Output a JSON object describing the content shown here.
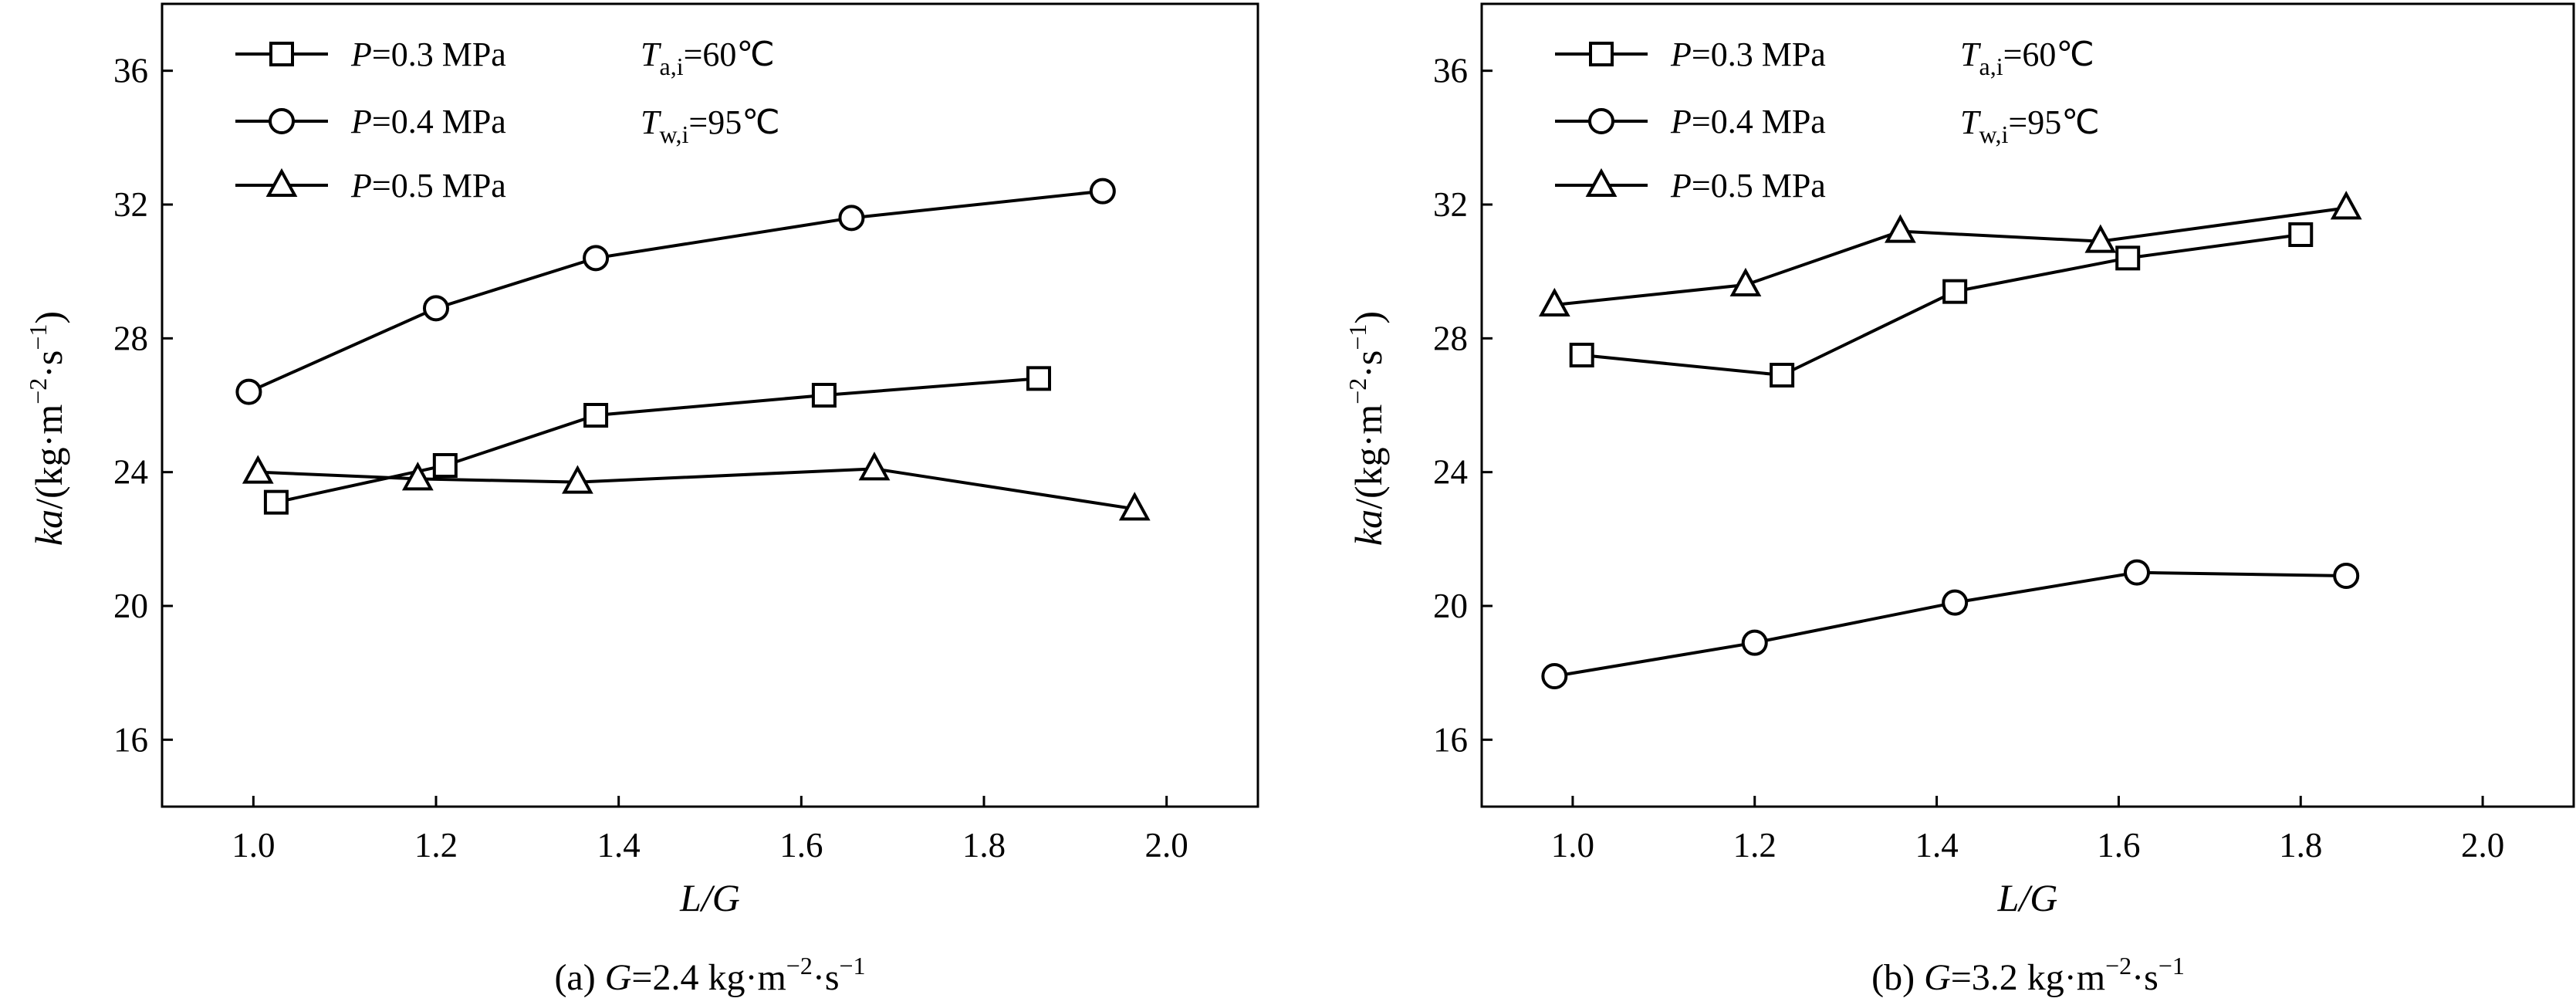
{
  "chart_data": [
    {
      "type": "line",
      "caption": {
        "prefix": "(a) ",
        "var": "G",
        "text": "=2.4 kg·m",
        "exp": "−2",
        "suffix": "·s",
        "exp2": "−1"
      },
      "xlabel": {
        "main": "L/G"
      },
      "ylabel": {
        "var": "ka",
        "text": "/(kg·m",
        "exp": "−2",
        "mid": "·s",
        "exp2": "−1",
        "close": ")"
      },
      "xlim": [
        0.9,
        2.1
      ],
      "ylim": [
        14,
        38
      ],
      "xticks": [
        1.0,
        1.2,
        1.4,
        1.6,
        1.8,
        2.0
      ],
      "xticklabels": [
        "1.0",
        "1.2",
        "1.4",
        "1.6",
        "1.8",
        "2.0"
      ],
      "yticks": [
        16,
        20,
        24,
        28,
        32,
        36
      ],
      "yticklabels": [
        "16",
        "20",
        "24",
        "28",
        "32",
        "36"
      ],
      "legend_placement": "top-left",
      "annotations": [
        {
          "var": "T",
          "sub": "a,i",
          "text": "=60℃"
        },
        {
          "var": "T",
          "sub": "w,i",
          "text": "=95℃"
        }
      ],
      "series": [
        {
          "name": "P=0.3 MPa",
          "var": "P",
          "label": "=0.3 MPa",
          "marker": "square",
          "x": [
            1.025,
            1.21,
            1.375,
            1.625,
            1.86
          ],
          "y": [
            23.1,
            24.2,
            25.7,
            26.3,
            26.8
          ]
        },
        {
          "name": "P=0.4 MPa",
          "var": "P",
          "label": "=0.4 MPa",
          "marker": "circle",
          "x": [
            0.995,
            1.2,
            1.375,
            1.655,
            1.93
          ],
          "y": [
            26.4,
            28.9,
            30.4,
            31.6,
            32.4
          ]
        },
        {
          "name": "P=0.5 MPa",
          "var": "P",
          "label": "=0.5 MPa",
          "marker": "triangle",
          "x": [
            1.005,
            1.18,
            1.355,
            1.68,
            1.965
          ],
          "y": [
            24.0,
            23.8,
            23.7,
            24.1,
            22.9
          ]
        }
      ]
    },
    {
      "type": "line",
      "caption": {
        "prefix": "(b) ",
        "var": "G",
        "text": "=3.2 kg·m",
        "exp": "−2",
        "suffix": "·s",
        "exp2": "−1"
      },
      "xlabel": {
        "main": "L/G"
      },
      "ylabel": {
        "var": "ka",
        "text": "/(kg·m",
        "exp": "−2",
        "mid": "·s",
        "exp2": "−1",
        "close": ")"
      },
      "xlim": [
        0.9,
        2.1
      ],
      "ylim": [
        14,
        38
      ],
      "xticks": [
        1.0,
        1.2,
        1.4,
        1.6,
        1.8,
        2.0
      ],
      "xticklabels": [
        "1.0",
        "1.2",
        "1.4",
        "1.6",
        "1.8",
        "2.0"
      ],
      "yticks": [
        16,
        20,
        24,
        28,
        32,
        36
      ],
      "yticklabels": [
        "16",
        "20",
        "24",
        "28",
        "32",
        "36"
      ],
      "legend_placement": "top-left",
      "annotations": [
        {
          "var": "T",
          "sub": "a,i",
          "text": "=60℃"
        },
        {
          "var": "T",
          "sub": "w,i",
          "text": "=95℃"
        }
      ],
      "series": [
        {
          "name": "P=0.3 MPa",
          "var": "P",
          "label": "=0.3 MPa",
          "marker": "square",
          "x": [
            1.01,
            1.23,
            1.42,
            1.61,
            1.8
          ],
          "y": [
            27.5,
            26.9,
            29.4,
            30.4,
            31.1
          ]
        },
        {
          "name": "P=0.4 MPa",
          "var": "P",
          "label": "=0.4 MPa",
          "marker": "circle",
          "x": [
            0.98,
            1.2,
            1.42,
            1.62,
            1.85
          ],
          "y": [
            17.9,
            18.9,
            20.1,
            21.0,
            20.9
          ]
        },
        {
          "name": "P=0.5 MPa",
          "var": "P",
          "label": "=0.5 MPa",
          "marker": "triangle",
          "x": [
            0.98,
            1.19,
            1.36,
            1.58,
            1.85
          ],
          "y": [
            29.0,
            29.6,
            31.2,
            30.9,
            31.9
          ]
        }
      ]
    }
  ]
}
